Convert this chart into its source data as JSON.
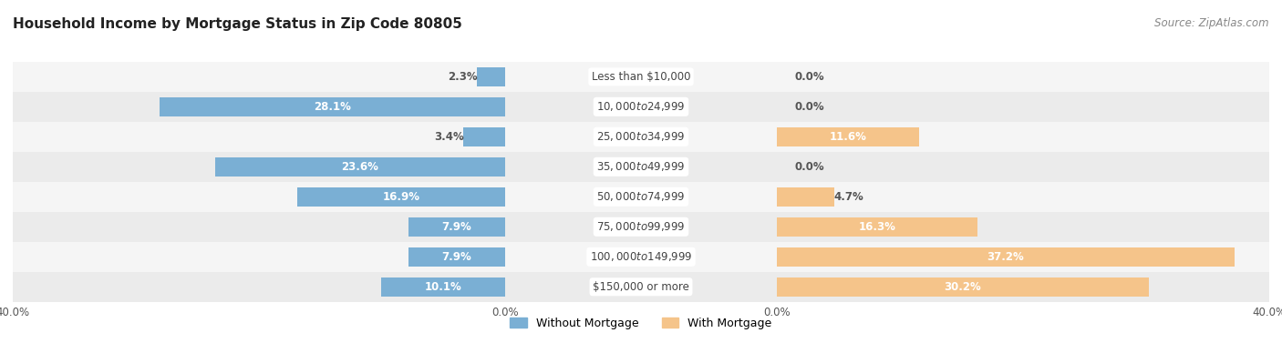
{
  "title": "Household Income by Mortgage Status in Zip Code 80805",
  "source": "Source: ZipAtlas.com",
  "categories": [
    "Less than $10,000",
    "$10,000 to $24,999",
    "$25,000 to $34,999",
    "$35,000 to $49,999",
    "$50,000 to $74,999",
    "$75,000 to $99,999",
    "$100,000 to $149,999",
    "$150,000 or more"
  ],
  "without_mortgage": [
    2.3,
    28.1,
    3.4,
    23.6,
    16.9,
    7.9,
    7.9,
    10.1
  ],
  "with_mortgage": [
    0.0,
    0.0,
    11.6,
    0.0,
    4.7,
    16.3,
    37.2,
    30.2
  ],
  "color_without": "#7aafd4",
  "color_with": "#f5c48a",
  "axis_limit": 40.0,
  "row_bg_light": "#f5f5f5",
  "row_bg_dark": "#ebebeb",
  "label_color_inside_wo": "#ffffff",
  "label_color_inside_wm": "#ffffff",
  "label_color_outside": "#555555",
  "title_fontsize": 11,
  "source_fontsize": 8.5,
  "label_fontsize": 8.5,
  "category_fontsize": 8.5,
  "axis_label_fontsize": 8.5,
  "legend_fontsize": 9,
  "fig_bg_color": "#ffffff",
  "center_label_bg": "#ffffff",
  "center_label_color": "#444444"
}
